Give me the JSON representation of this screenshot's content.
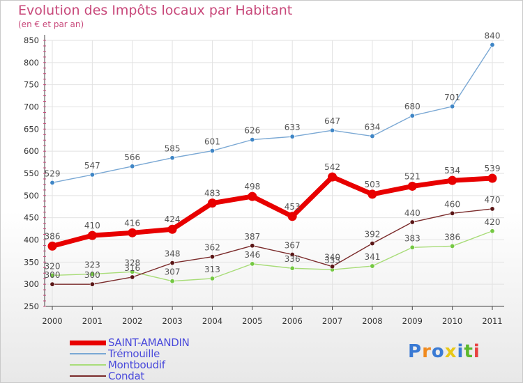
{
  "chart_data": {
    "type": "line",
    "title": "Evolution des Impôts locaux par Habitant",
    "subtitle": "(en € et par an)",
    "x": [
      "2000",
      "2001",
      "2002",
      "2003",
      "2004",
      "2005",
      "2006",
      "2007",
      "2008",
      "2009",
      "2010",
      "2011"
    ],
    "ylim": [
      250,
      850
    ],
    "yticks": [
      250,
      300,
      350,
      400,
      450,
      500,
      550,
      600,
      650,
      700,
      750,
      800,
      850
    ],
    "grid": true,
    "legend_position": "bottom-left",
    "series": [
      {
        "name": "SAINT-AMANDIN",
        "color": "#e80000",
        "values": [
          386,
          410,
          416,
          424,
          483,
          498,
          453,
          542,
          503,
          521,
          534,
          539
        ]
      },
      {
        "name": "Trémouille",
        "color": "#7aa8d4",
        "values": [
          529,
          547,
          566,
          585,
          601,
          626,
          633,
          647,
          634,
          680,
          701,
          840
        ]
      },
      {
        "name": "Montboudif",
        "color": "#a8dc78",
        "values": [
          320,
          323,
          328,
          307,
          313,
          346,
          336,
          333,
          341,
          383,
          386,
          420
        ]
      },
      {
        "name": "Condat",
        "color": "#7a2a2a",
        "values": [
          300,
          300,
          316,
          348,
          362,
          387,
          367,
          340,
          392,
          440,
          460,
          470
        ]
      }
    ]
  },
  "logo": {
    "text": "Proxiti",
    "colors": [
      "#3a7ad4",
      "#f08a1e",
      "#3a7ad4",
      "#e8c818",
      "#3a7ad4",
      "#5cb82c",
      "#e84040"
    ]
  }
}
